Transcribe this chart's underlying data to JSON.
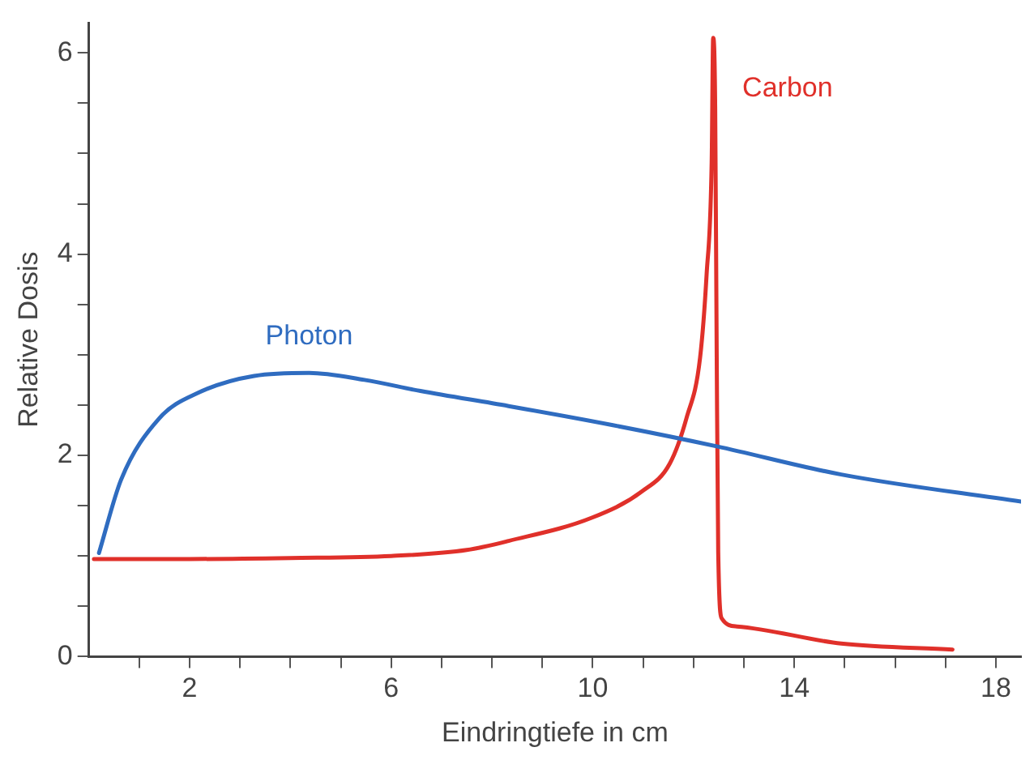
{
  "chart_data": {
    "type": "line",
    "xlabel": "Eindringtiefe in cm",
    "ylabel": "Relative Dosis",
    "xlim": [
      0,
      18.5
    ],
    "ylim": [
      0,
      6.3
    ],
    "xticks": [
      {
        "value": 1,
        "label": null
      },
      2,
      {
        "value": 3,
        "label": null
      },
      {
        "value": 4,
        "label": null
      },
      {
        "value": 5,
        "label": null
      },
      6,
      {
        "value": 7,
        "label": null
      },
      {
        "value": 8,
        "label": null
      },
      {
        "value": 9,
        "label": null
      },
      10,
      {
        "value": 11,
        "label": null
      },
      {
        "value": 12,
        "label": null
      },
      {
        "value": 13,
        "label": null
      },
      14,
      {
        "value": 15,
        "label": null
      },
      {
        "value": 16,
        "label": null
      },
      {
        "value": 17,
        "label": null
      },
      18
    ],
    "yticks": [
      0,
      {
        "value": 0.5,
        "label": null
      },
      {
        "value": 1,
        "label": null
      },
      {
        "value": 1.5,
        "label": null
      },
      2,
      {
        "value": 2.5,
        "label": null
      },
      {
        "value": 3,
        "label": null
      },
      {
        "value": 3.5,
        "label": null
      },
      4,
      {
        "value": 4.5,
        "label": null
      },
      {
        "value": 5,
        "label": null
      },
      {
        "value": 5.5,
        "label": null
      },
      6
    ],
    "grid": false,
    "legend": false,
    "marker": "none",
    "line_style": "solid",
    "series": [
      {
        "name": "Photon",
        "color": "#2f6cc0",
        "x": [
          0.2,
          0.64,
          1.4,
          2.16,
          3.28,
          4.37,
          5.47,
          6.58,
          8.33,
          10.4,
          12.46,
          14.93,
          18.5
        ],
        "values": [
          1.03,
          1.76,
          2.37,
          2.62,
          2.79,
          2.82,
          2.75,
          2.64,
          2.49,
          2.3,
          2.09,
          1.81,
          1.54
        ]
      },
      {
        "name": "Carbon",
        "color": "#e0302a",
        "x": [
          0.1,
          2,
          4,
          6,
          7.5,
          8.33,
          9.98,
          10.97,
          11.53,
          11.86,
          12.13,
          12.26,
          12.36,
          12.39,
          12.43,
          12.46,
          12.49,
          12.56,
          12.86,
          14.93,
          17.14
        ],
        "values": [
          0.97,
          0.97,
          0.98,
          1.0,
          1.06,
          1.15,
          1.38,
          1.64,
          1.92,
          2.37,
          2.97,
          3.8,
          4.91,
          6.15,
          5.46,
          3.0,
          1.04,
          0.38,
          0.3,
          0.13,
          0.07
        ]
      }
    ]
  }
}
